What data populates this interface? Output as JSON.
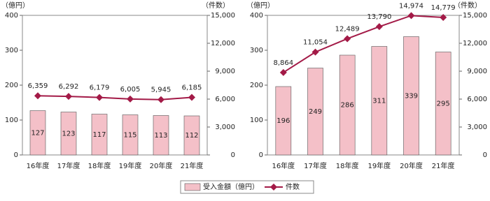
{
  "chart_data": [
    {
      "type": "bar-line",
      "y_label": "（億円）",
      "y2_label": "（件数）",
      "categories": [
        "16年度",
        "17年度",
        "18年度",
        "19年度",
        "20年度",
        "21年度"
      ],
      "series": [
        {
          "name": "受入金額（億円）",
          "type": "bar",
          "color": "#f4c0c8",
          "values": [
            127,
            123,
            117,
            115,
            113,
            112
          ]
        },
        {
          "name": "件数",
          "type": "line",
          "axis": "y2",
          "color": "#a31a47",
          "values": [
            6359,
            6292,
            6179,
            6005,
            5945,
            6185
          ],
          "value_labels": [
            "6,359",
            "6,292",
            "6,179",
            "6,005",
            "5,945",
            "6,185"
          ]
        }
      ],
      "ylim": [
        0,
        400
      ],
      "yticks": [
        0,
        100,
        200,
        300,
        400
      ],
      "y2lim": [
        0,
        15000
      ],
      "y2ticks": [
        0,
        {
          "value": 3000,
          "label": "3,000"
        },
        {
          "value": 6000,
          "label": "6,000"
        },
        {
          "value": 9000,
          "label": "9,000"
        },
        {
          "value": 12000,
          "label": "12,000"
        },
        {
          "value": 15000,
          "label": "15,000"
        }
      ]
    },
    {
      "type": "bar-line",
      "y_label": "（億円）",
      "y2_label": "（件数）",
      "categories": [
        "16年度",
        "17年度",
        "18年度",
        "19年度",
        "20年度",
        "21年度"
      ],
      "series": [
        {
          "type": "bar",
          "color": "#f4c0c8",
          "values": [
            196,
            249,
            286,
            311,
            339,
            295
          ]
        },
        {
          "type": "line",
          "axis": "y2",
          "color": "#a31a47",
          "values": [
            8864,
            11054,
            12489,
            13790,
            14974,
            14779
          ],
          "value_labels": [
            "8,864",
            "11,054",
            "12,489",
            "13,790",
            "14,974",
            "14,779"
          ]
        }
      ],
      "ylim": [
        0,
        400
      ],
      "yticks": [
        0,
        100,
        200,
        300,
        400
      ],
      "y2lim": [
        0,
        15000
      ],
      "y2ticks": [
        0,
        {
          "value": 3000,
          "label": "3,000"
        },
        {
          "value": 6000,
          "label": "6,000"
        },
        {
          "value": 9000,
          "label": "9,000"
        },
        {
          "value": 12000,
          "label": "12,000"
        },
        {
          "value": 15000,
          "label": "15,000"
        }
      ]
    }
  ]
}
